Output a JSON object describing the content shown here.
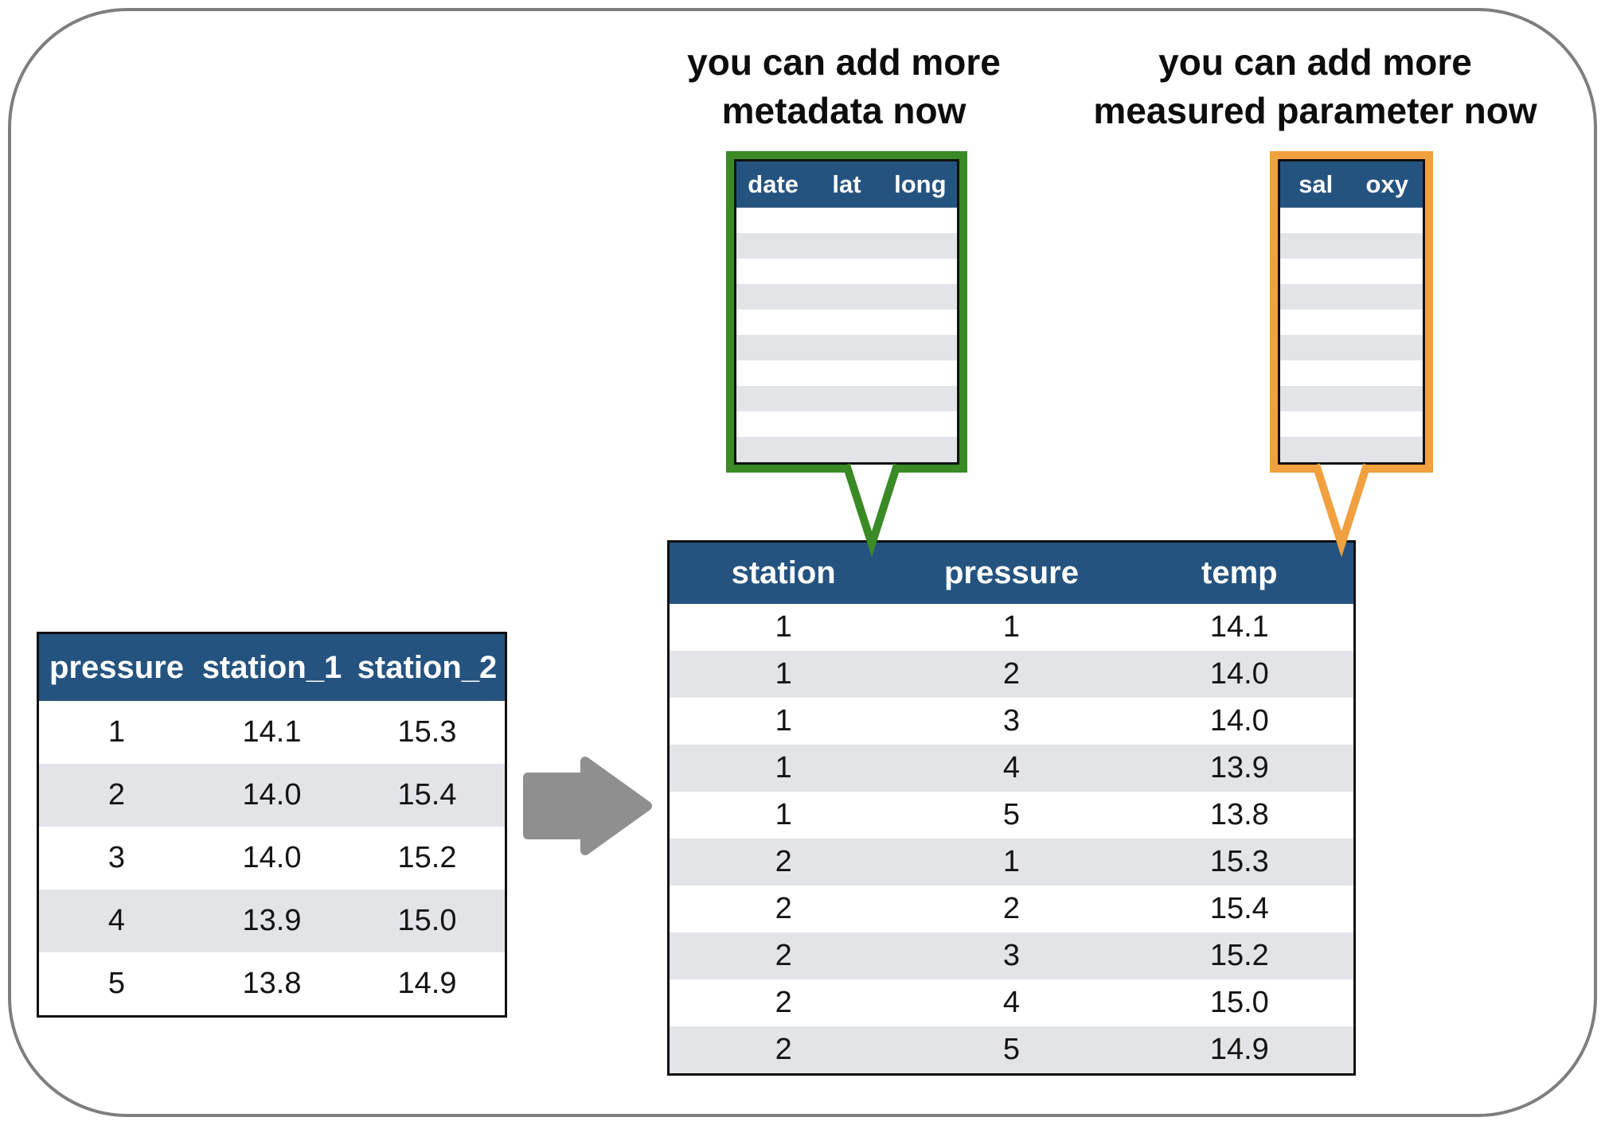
{
  "annotations": {
    "metadata": "you can add more\nmetadata now",
    "parameter": "you can add more\nmeasured parameter now"
  },
  "callouts": {
    "metadata": {
      "columns": [
        "date",
        "lat",
        "long"
      ],
      "empty_row_count": 10
    },
    "parameter": {
      "columns": [
        "sal",
        "oxy"
      ],
      "empty_row_count": 10
    }
  },
  "wide_table": {
    "columns": [
      "pressure",
      "station_1",
      "station_2"
    ],
    "rows": [
      [
        "1",
        "14.1",
        "15.3"
      ],
      [
        "2",
        "14.0",
        "15.4"
      ],
      [
        "3",
        "14.0",
        "15.2"
      ],
      [
        "4",
        "13.9",
        "15.0"
      ],
      [
        "5",
        "13.8",
        "14.9"
      ]
    ]
  },
  "long_table": {
    "columns": [
      "station",
      "pressure",
      "temp"
    ],
    "rows": [
      [
        "1",
        "1",
        "14.1"
      ],
      [
        "1",
        "2",
        "14.0"
      ],
      [
        "1",
        "3",
        "14.0"
      ],
      [
        "1",
        "4",
        "13.9"
      ],
      [
        "1",
        "5",
        "13.8"
      ],
      [
        "2",
        "1",
        "15.3"
      ],
      [
        "2",
        "2",
        "15.4"
      ],
      [
        "2",
        "3",
        "15.2"
      ],
      [
        "2",
        "4",
        "15.0"
      ],
      [
        "2",
        "5",
        "14.9"
      ]
    ]
  },
  "colors": {
    "header_blue": "#255380",
    "row_alt": "#e2e4e8",
    "green": "#3a8a26",
    "orange": "#f0a03e",
    "arrow": "#8f8f8f",
    "frame": "#7e7e7e"
  }
}
